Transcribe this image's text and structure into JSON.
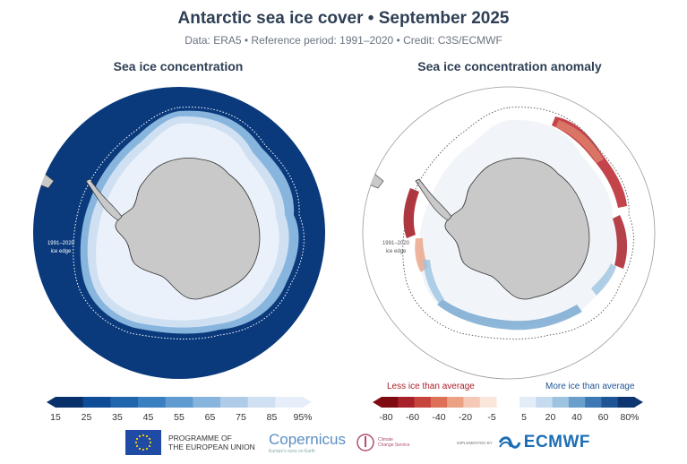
{
  "header": {
    "title": "Antarctic sea ice cover • September 2025",
    "subtitle": "Data: ERA5 • Reference period: 1991–2020 • Credit: C3S/ECMWF"
  },
  "left_map": {
    "title": "Sea ice concentration",
    "edge_label_1": "1991–2020",
    "edge_label_2": "ice edge",
    "colors": {
      "ocean": "#0a3a7c",
      "ice_high": "#eaf1fa",
      "ice_mid": "#a9c8e6",
      "land": "#c9c9c9"
    }
  },
  "right_map": {
    "title": "Sea ice concentration anomaly",
    "edge_label_1": "1991–2020",
    "edge_label_2": "ice edge",
    "colors": {
      "less": "#b8232a",
      "more": "#2a6ab3",
      "land": "#c9c9c9"
    }
  },
  "legend_left": {
    "ticks": [
      "15",
      "25",
      "35",
      "45",
      "55",
      "65",
      "75",
      "85",
      "95%"
    ],
    "colors": [
      "#08306b",
      "#0f4c97",
      "#2166ac",
      "#3a7fc0",
      "#5f9bd0",
      "#87b5dd",
      "#aecce8",
      "#cfe0f2",
      "#e6eff9"
    ]
  },
  "legend_right": {
    "less_label": "Less ice than average",
    "more_label": "More ice than average",
    "ticks_less": [
      "-80",
      "-60",
      "-40",
      "-20",
      "-5"
    ],
    "ticks_more": [
      "5",
      "20",
      "40",
      "60",
      "80%"
    ],
    "colors_less": [
      "#7f0b12",
      "#a8202a",
      "#c8453e",
      "#dd7056",
      "#eba184",
      "#f5c9b5",
      "#fbe6dc"
    ],
    "colors_more": [
      "#e3edf7",
      "#c6dbef",
      "#9ec3e1",
      "#6a9fcc",
      "#3d78b5",
      "#1f5495",
      "#0d3670"
    ]
  },
  "footer": {
    "eu_line1": "PROGRAMME OF",
    "eu_line2": "THE EUROPEAN UNION",
    "copernicus": "Copernicus",
    "copernicus_sub": "Europe's eyes on Earth",
    "c3s_line1": "Climate",
    "c3s_line2": "Change Service",
    "implemented_by": "IMPLEMENTED BY",
    "ecmwf": "ECMWF"
  }
}
